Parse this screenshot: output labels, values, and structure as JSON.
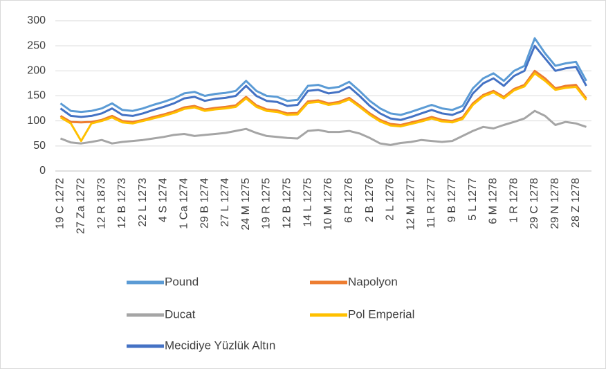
{
  "chart_data": {
    "type": "line",
    "categories": [
      "19 C 1272",
      null,
      "27 Za 1272",
      null,
      "12 R 1873",
      null,
      "12 B 1273",
      null,
      "22 L 1273",
      null,
      "4 S 1274",
      null,
      "1 Ca 1274",
      null,
      "29 B 1274",
      null,
      "27 L 1274",
      null,
      "24 M 1275",
      null,
      "19 R 1275",
      null,
      "12 B 1275",
      null,
      "14 L 1275",
      null,
      "10 M 1276",
      null,
      "6 R 1276",
      null,
      "2 B 1276",
      null,
      "2 L 1276",
      null,
      "12 M 1277",
      null,
      "11 R 1277",
      null,
      "9 B 1277",
      null,
      "5 L 1277",
      null,
      "6 M 1278",
      null,
      "1 R 1278",
      null,
      "29 C 1278",
      null,
      "29 N 1278",
      null,
      "28 Z 1278",
      null
    ],
    "series": [
      {
        "name": "Pound",
        "color": "#5b9bd5",
        "values": [
          135,
          120,
          118,
          120,
          125,
          135,
          122,
          120,
          125,
          132,
          138,
          145,
          155,
          158,
          150,
          154,
          156,
          160,
          180,
          160,
          150,
          148,
          140,
          142,
          170,
          172,
          165,
          168,
          178,
          160,
          140,
          125,
          115,
          112,
          118,
          125,
          132,
          125,
          122,
          130,
          165,
          185,
          195,
          180,
          200,
          210,
          265,
          235,
          210,
          215,
          218,
          180
        ]
      },
      {
        "name": "Napolyon",
        "color": "#ed7d31",
        "values": [
          110,
          98,
          97,
          98,
          102,
          110,
          100,
          98,
          102,
          108,
          113,
          119,
          127,
          130,
          123,
          126,
          128,
          131,
          148,
          131,
          123,
          121,
          115,
          116,
          139,
          141,
          135,
          138,
          146,
          131,
          115,
          102,
          94,
          92,
          97,
          102,
          108,
          102,
          100,
          107,
          135,
          152,
          160,
          148,
          164,
          172,
          200,
          185,
          165,
          170,
          172,
          145
        ]
      },
      {
        "name": "Ducat",
        "color": "#a5a5a5",
        "values": [
          65,
          57,
          55,
          58,
          62,
          55,
          58,
          60,
          62,
          65,
          68,
          72,
          74,
          70,
          72,
          74,
          76,
          80,
          84,
          76,
          70,
          68,
          66,
          65,
          80,
          82,
          78,
          78,
          80,
          75,
          66,
          55,
          52,
          56,
          58,
          62,
          60,
          58,
          60,
          70,
          80,
          88,
          85,
          92,
          98,
          105,
          120,
          110,
          92,
          98,
          95,
          88
        ]
      },
      {
        "name": "Pol Emperial",
        "color": "#ffc000",
        "values": [
          107,
          95,
          60,
          95,
          100,
          107,
          97,
          95,
          100,
          105,
          110,
          116,
          124,
          127,
          120,
          123,
          125,
          128,
          145,
          128,
          120,
          118,
          112,
          113,
          136,
          138,
          132,
          135,
          143,
          128,
          112,
          99,
          91,
          89,
          94,
          99,
          105,
          99,
          97,
          104,
          132,
          149,
          157,
          145,
          161,
          169,
          195,
          180,
          162,
          166,
          168,
          142
        ]
      },
      {
        "name": "Mecidiye Yüzlük Altın",
        "color": "#4472c4",
        "values": [
          125,
          110,
          108,
          110,
          115,
          125,
          112,
          110,
          115,
          122,
          128,
          135,
          145,
          148,
          140,
          144,
          146,
          150,
          170,
          150,
          140,
          138,
          130,
          132,
          160,
          162,
          155,
          158,
          168,
          150,
          130,
          115,
          105,
          102,
          108,
          115,
          122,
          115,
          112,
          120,
          155,
          175,
          185,
          170,
          190,
          200,
          250,
          225,
          200,
          205,
          208,
          170
        ]
      }
    ],
    "ylim": [
      0,
      300
    ],
    "yticks": [
      0,
      50,
      100,
      150,
      200,
      250,
      300
    ],
    "grid": true
  }
}
